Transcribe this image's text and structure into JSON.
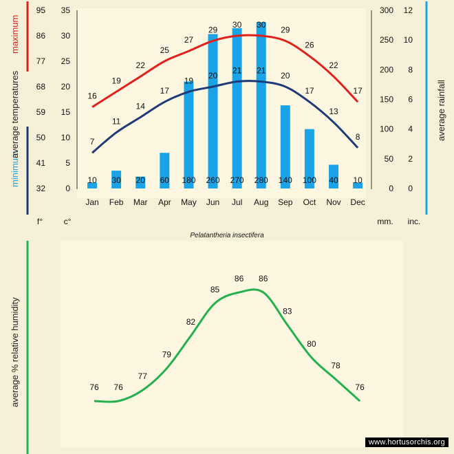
{
  "chart_data": [
    {
      "type": "bar+line",
      "title": "Pelatantheria insectifera",
      "categories": [
        "Jan",
        "Feb",
        "Mar",
        "Apr",
        "May",
        "Jun",
        "Jul",
        "Aug",
        "Sep",
        "Oct",
        "Nov",
        "Dec"
      ],
      "series": [
        {
          "name": "maximum average temperatures",
          "unit": "c°",
          "color": "#e0201a",
          "values": [
            16,
            19,
            22,
            25,
            27,
            29,
            30,
            30,
            29,
            26,
            22,
            17
          ]
        },
        {
          "name": "minimum average temperatures",
          "unit": "c°",
          "color": "#1f3a78",
          "values": [
            7,
            11,
            14,
            17,
            19,
            20,
            21,
            21,
            20,
            17,
            13,
            8
          ]
        },
        {
          "name": "average rainfall",
          "unit": "mm.",
          "color": "#1aa3e6",
          "values": [
            10,
            30,
            20,
            60,
            180,
            260,
            270,
            280,
            140,
            100,
            40,
            10
          ]
        }
      ],
      "axes": {
        "celsius": {
          "label": "c°",
          "ticks": [
            0,
            5,
            10,
            15,
            20,
            25,
            30,
            35
          ],
          "range": [
            0,
            35
          ]
        },
        "fahrenheit": {
          "label": "f°",
          "ticks": [
            32,
            41,
            50,
            59,
            68,
            77,
            86,
            95
          ]
        },
        "mm": {
          "label": "mm.",
          "ticks": [
            0,
            50,
            100,
            150,
            200,
            250,
            300
          ],
          "range": [
            0,
            300
          ]
        },
        "inches": {
          "label": "inc.",
          "ticks": [
            0,
            2,
            4,
            6,
            8,
            10,
            12
          ]
        }
      },
      "ylabel_left_max": "maximum",
      "ylabel_left_mid": "average  temperatures",
      "ylabel_left_min": "minimum",
      "ylabel_right": "average  rainfall"
    },
    {
      "type": "line",
      "categories": [
        "Jan",
        "Feb",
        "Mar",
        "Apr",
        "May",
        "Jun",
        "Jul",
        "Aug",
        "Sep",
        "Oct",
        "Nov",
        "Dec"
      ],
      "series": [
        {
          "name": "average % relative humidity",
          "color": "#22b14c",
          "values": [
            76,
            76,
            77,
            79,
            82,
            85,
            86,
            86,
            83,
            80,
            78,
            76
          ]
        }
      ],
      "ylabel": "average %  relative humidity"
    }
  ],
  "credit": "www.hortusorchis.org",
  "colors": {
    "max": "#e0201a",
    "min": "#1f3a78",
    "rain": "#1aa3e6",
    "humidity": "#22b14c",
    "panel": "#fdf6e0",
    "bg": "#f7f0d8"
  }
}
